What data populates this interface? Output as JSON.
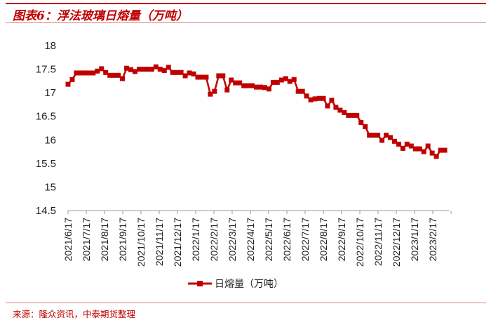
{
  "title": "图表6：浮法玻璃日熔量（万吨）",
  "source": "来源：隆众资讯，中泰期货整理",
  "colors": {
    "accent": "#c00000",
    "series": "#c00000"
  },
  "chart_data": {
    "type": "line",
    "title": "",
    "xlabel": "",
    "ylabel": "",
    "ylim": [
      14.5,
      18
    ],
    "yticks": [
      "14.5",
      "15",
      "15.5",
      "16",
      "16.5",
      "17",
      "17.5",
      "18"
    ],
    "ytick_values": [
      14.5,
      15,
      15.5,
      16,
      16.5,
      17,
      17.5,
      18
    ],
    "xticks": [
      "2021/6/17",
      "2021/7/17",
      "2021/8/17",
      "2021/9/17",
      "2021/10/17",
      "2021/11/17",
      "2021/12/17",
      "2022/1/17",
      "2022/2/17",
      "2022/3/17",
      "2022/4/17",
      "2022/5/17",
      "2022/6/17",
      "2022/7/17",
      "2022/8/17",
      "2022/9/17",
      "2022/10/17",
      "2022/11/17",
      "2022/12/17",
      "2023/1/17",
      "2023/2/17"
    ],
    "grid": false,
    "legend": "bottom",
    "series": [
      {
        "name": "日熔量（万吨）",
        "marker": "square",
        "x": [
          "2021/6/17",
          "2021/6/24",
          "2021/7/1",
          "2021/7/8",
          "2021/7/15",
          "2021/7/22",
          "2021/7/29",
          "2021/8/5",
          "2021/8/12",
          "2021/8/19",
          "2021/8/26",
          "2021/9/2",
          "2021/9/9",
          "2021/9/16",
          "2021/9/23",
          "2021/9/30",
          "2021/10/7",
          "2021/10/14",
          "2021/10/21",
          "2021/10/28",
          "2021/11/4",
          "2021/11/11",
          "2021/11/18",
          "2021/11/25",
          "2021/12/2",
          "2021/12/9",
          "2021/12/16",
          "2021/12/23",
          "2021/12/30",
          "2022/1/6",
          "2022/1/13",
          "2022/1/20",
          "2022/1/27",
          "2022/2/3",
          "2022/2/10",
          "2022/2/17",
          "2022/2/24",
          "2022/3/3",
          "2022/3/10",
          "2022/3/17",
          "2022/3/24",
          "2022/3/31",
          "2022/4/7",
          "2022/4/14",
          "2022/4/21",
          "2022/4/28",
          "2022/5/5",
          "2022/5/12",
          "2022/5/19",
          "2022/5/26",
          "2022/6/2",
          "2022/6/9",
          "2022/6/16",
          "2022/6/23",
          "2022/6/30",
          "2022/7/7",
          "2022/7/14",
          "2022/7/21",
          "2022/7/28",
          "2022/8/4",
          "2022/8/11",
          "2022/8/18",
          "2022/8/25",
          "2022/9/1",
          "2022/9/8",
          "2022/9/15",
          "2022/9/22",
          "2022/9/29",
          "2022/10/6",
          "2022/10/13",
          "2022/10/20",
          "2022/10/27",
          "2022/11/3",
          "2022/11/10",
          "2022/11/17",
          "2022/11/24",
          "2022/12/1",
          "2022/12/8",
          "2022/12/15",
          "2022/12/22",
          "2022/12/29",
          "2023/1/5",
          "2023/1/12",
          "2023/1/19",
          "2023/1/26",
          "2023/2/2",
          "2023/2/9",
          "2023/2/16",
          "2023/2/23",
          "2023/3/2",
          "2023/3/9"
        ],
        "values": [
          17.18,
          17.28,
          17.42,
          17.42,
          17.42,
          17.42,
          17.42,
          17.46,
          17.51,
          17.43,
          17.37,
          17.37,
          17.37,
          17.3,
          17.52,
          17.49,
          17.45,
          17.5,
          17.5,
          17.5,
          17.5,
          17.55,
          17.5,
          17.47,
          17.54,
          17.43,
          17.43,
          17.43,
          17.36,
          17.42,
          17.4,
          17.33,
          17.33,
          17.33,
          16.97,
          17.03,
          17.36,
          17.36,
          17.06,
          17.27,
          17.21,
          17.21,
          17.15,
          17.15,
          17.15,
          17.12,
          17.12,
          17.11,
          17.08,
          17.22,
          17.22,
          17.27,
          17.3,
          17.24,
          17.28,
          17.03,
          17.03,
          16.93,
          16.85,
          16.87,
          16.88,
          16.88,
          16.72,
          16.84,
          16.69,
          16.63,
          16.58,
          16.52,
          16.52,
          16.52,
          16.37,
          16.28,
          16.1,
          16.1,
          16.1,
          15.99,
          16.1,
          16.05,
          15.97,
          15.91,
          15.82,
          15.91,
          15.87,
          15.81,
          15.81,
          15.75,
          15.87,
          15.72,
          15.65,
          15.78,
          15.78
        ]
      }
    ]
  }
}
